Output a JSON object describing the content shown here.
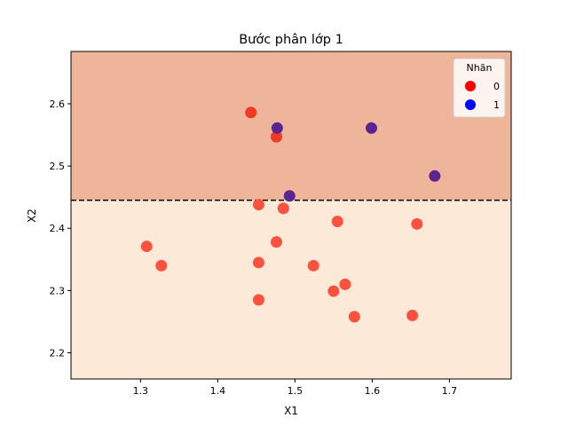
{
  "chart_data": {
    "type": "scatter",
    "title": "Bước phân lớp 1",
    "xlabel": "X1",
    "ylabel": "X2",
    "xlim": [
      1.21,
      1.78
    ],
    "ylim": [
      2.158,
      2.684
    ],
    "xticks": [
      1.3,
      1.4,
      1.5,
      1.6,
      1.7
    ],
    "yticks": [
      2.2,
      2.3,
      2.4,
      2.5,
      2.6
    ],
    "xtick_labels": [
      "1.3",
      "1.4",
      "1.5",
      "1.6",
      "1.7"
    ],
    "ytick_labels": [
      "2.2",
      "2.3",
      "2.4",
      "2.5",
      "2.6"
    ],
    "decision_boundary": {
      "orientation": "horizontal",
      "value": 2.445,
      "style": "dashed",
      "color": "#000000"
    },
    "regions": [
      {
        "from": 2.445,
        "to": 2.684,
        "color": "#efb59a"
      },
      {
        "from": 2.158,
        "to": 2.445,
        "color": "#fde9d8"
      }
    ],
    "legend": {
      "title": "Nhãn",
      "placement": "top-right",
      "entries": [
        {
          "label": "0",
          "color": "#ff0000"
        },
        {
          "label": "1",
          "color": "#0000ff"
        }
      ]
    },
    "point_colors": {
      "label_0_above": "#f03a21",
      "label_0_below": "#fb5240",
      "label_1": "#5b2590"
    },
    "points": [
      {
        "x": 1.443,
        "y": 2.586,
        "label": 0
      },
      {
        "x": 1.476,
        "y": 2.547,
        "label": 0
      },
      {
        "x": 1.477,
        "y": 2.561,
        "label": 1
      },
      {
        "x": 1.599,
        "y": 2.561,
        "label": 1
      },
      {
        "x": 1.681,
        "y": 2.484,
        "label": 1
      },
      {
        "x": 1.493,
        "y": 2.452,
        "label": 1
      },
      {
        "x": 1.453,
        "y": 2.438,
        "label": 0
      },
      {
        "x": 1.485,
        "y": 2.432,
        "label": 0
      },
      {
        "x": 1.555,
        "y": 2.411,
        "label": 0
      },
      {
        "x": 1.658,
        "y": 2.407,
        "label": 0
      },
      {
        "x": 1.308,
        "y": 2.371,
        "label": 0
      },
      {
        "x": 1.476,
        "y": 2.378,
        "label": 0
      },
      {
        "x": 1.327,
        "y": 2.34,
        "label": 0
      },
      {
        "x": 1.453,
        "y": 2.345,
        "label": 0
      },
      {
        "x": 1.524,
        "y": 2.34,
        "label": 0
      },
      {
        "x": 1.565,
        "y": 2.31,
        "label": 0
      },
      {
        "x": 1.55,
        "y": 2.299,
        "label": 0
      },
      {
        "x": 1.453,
        "y": 2.285,
        "label": 0
      },
      {
        "x": 1.577,
        "y": 2.258,
        "label": 0
      },
      {
        "x": 1.652,
        "y": 2.26,
        "label": 0
      }
    ]
  }
}
